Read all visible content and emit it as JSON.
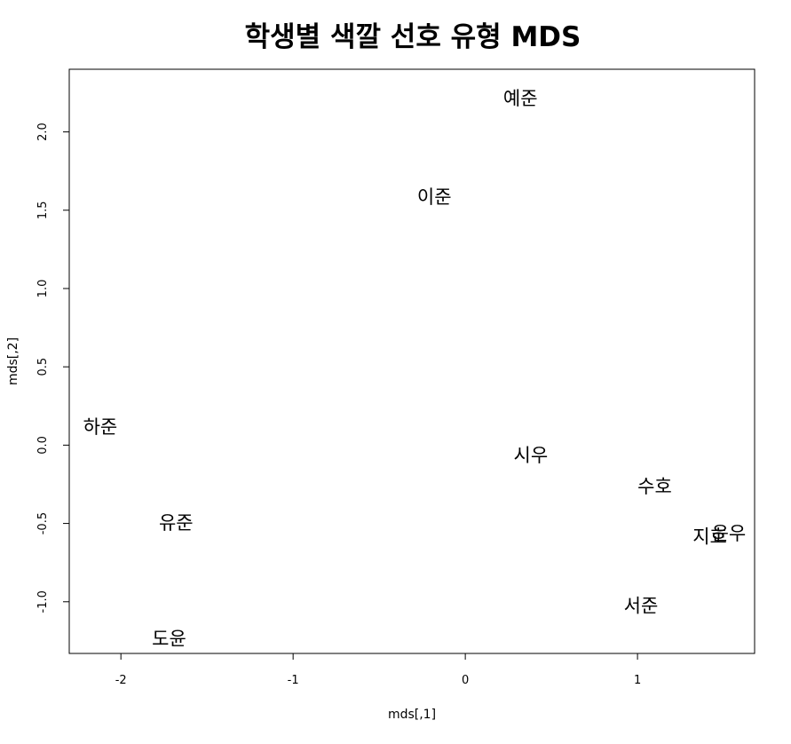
{
  "chart_data": {
    "type": "scatter",
    "title": "학생별 색깔 선호 유형 MDS",
    "xlabel": "mds[,1]",
    "ylabel": "mds[,2]",
    "xlim": [
      -2.3,
      1.68
    ],
    "ylim": [
      -1.33,
      2.4
    ],
    "x_ticks": [
      -2,
      -1,
      0,
      1
    ],
    "x_tick_labels": [
      "-2",
      "-1",
      "0",
      "1"
    ],
    "y_ticks": [
      -1.0,
      -0.5,
      0.0,
      0.5,
      1.0,
      1.5,
      2.0
    ],
    "y_tick_labels": [
      "-1.0",
      "-0.5",
      "0.0",
      "0.5",
      "1.0",
      "1.5",
      "2.0"
    ],
    "grid": false,
    "legend": "none",
    "marker": "text-labels",
    "points": [
      {
        "label": "예준",
        "x": 0.32,
        "y": 2.22
      },
      {
        "label": "이준",
        "x": -0.18,
        "y": 1.59
      },
      {
        "label": "하준",
        "x": -2.12,
        "y": 0.12
      },
      {
        "label": "시우",
        "x": 0.38,
        "y": -0.06
      },
      {
        "label": "수호",
        "x": 1.1,
        "y": -0.26
      },
      {
        "label": "유준",
        "x": -1.68,
        "y": -0.49
      },
      {
        "label": "지호",
        "x": 1.42,
        "y": -0.58
      },
      {
        "label": "윤우",
        "x": 1.53,
        "y": -0.56
      },
      {
        "label": "서준",
        "x": 1.02,
        "y": -1.02
      },
      {
        "label": "도윤",
        "x": -1.72,
        "y": -1.23
      }
    ]
  }
}
